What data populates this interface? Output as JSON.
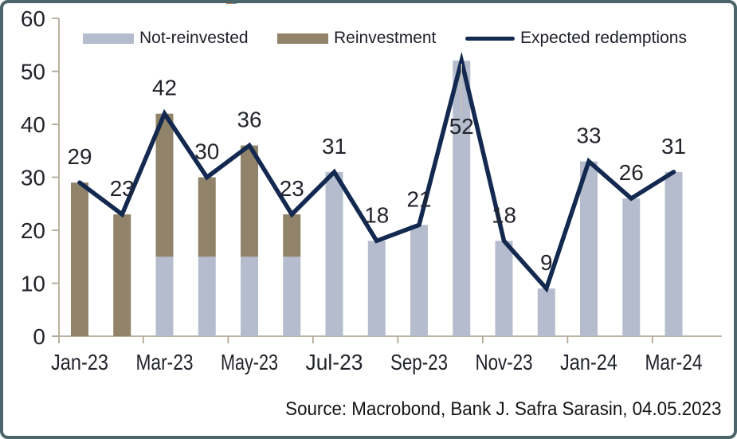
{
  "source_note": "Source: Macrobond, Bank J. Safra Sarasin, 04.05.2023",
  "legend": {
    "items": [
      {
        "label": "Not-reinvested"
      },
      {
        "label": "Reinvestment"
      },
      {
        "label": "Expected redemptions"
      }
    ]
  },
  "colors": {
    "frame_border": "#4b656b",
    "axis": "#b3a998",
    "tick_text": "#22242c",
    "data_label_text": "#22242c",
    "leader_line": "#c9c2b4",
    "background": "#ffffff"
  },
  "chart_data": {
    "type": "bar",
    "subtype": "stacked-bar-with-line",
    "title": "",
    "xlabel": "",
    "ylabel": "",
    "categories": [
      "Jan-23",
      "Feb-23",
      "Mar-23",
      "Apr-23",
      "May-23",
      "Jun-23",
      "Jul-23",
      "Aug-23",
      "Sep-23",
      "Oct-23",
      "Nov-23",
      "Dec-23",
      "Jan-24",
      "Feb-24",
      "Mar-24"
    ],
    "x_tick_labels": [
      "Jan-23",
      "Mar-23",
      "May-23",
      "Jul-23",
      "Sep-23",
      "Nov-23",
      "Jan-24",
      "Mar-24"
    ],
    "series": [
      {
        "name": "Not-reinvested",
        "type": "bar",
        "stacked": true,
        "color": "#b4bccd",
        "values": [
          0,
          0,
          15,
          15,
          15,
          15,
          31,
          18,
          21,
          52,
          18,
          9,
          33,
          26,
          31
        ]
      },
      {
        "name": "Reinvestment",
        "type": "bar",
        "stacked": true,
        "color": "#90836a",
        "values": [
          29,
          23,
          27,
          15,
          21,
          8,
          0,
          0,
          0,
          0,
          0,
          0,
          0,
          0,
          0
        ]
      },
      {
        "name": "Expected redemptions",
        "type": "line",
        "color": "#13294f",
        "values": [
          29,
          23,
          42,
          30,
          36,
          23,
          31,
          18,
          21,
          52,
          18,
          9,
          33,
          26,
          31
        ]
      }
    ],
    "data_labels": {
      "values": [
        29,
        23,
        42,
        30,
        36,
        23,
        31,
        18,
        21,
        52,
        18,
        9,
        33,
        26,
        31
      ],
      "inside_index": 9
    },
    "ylim": [
      0,
      60
    ],
    "y_ticks": [
      0,
      10,
      20,
      30,
      40,
      50,
      60
    ],
    "grid": false,
    "legend_position": "top"
  }
}
